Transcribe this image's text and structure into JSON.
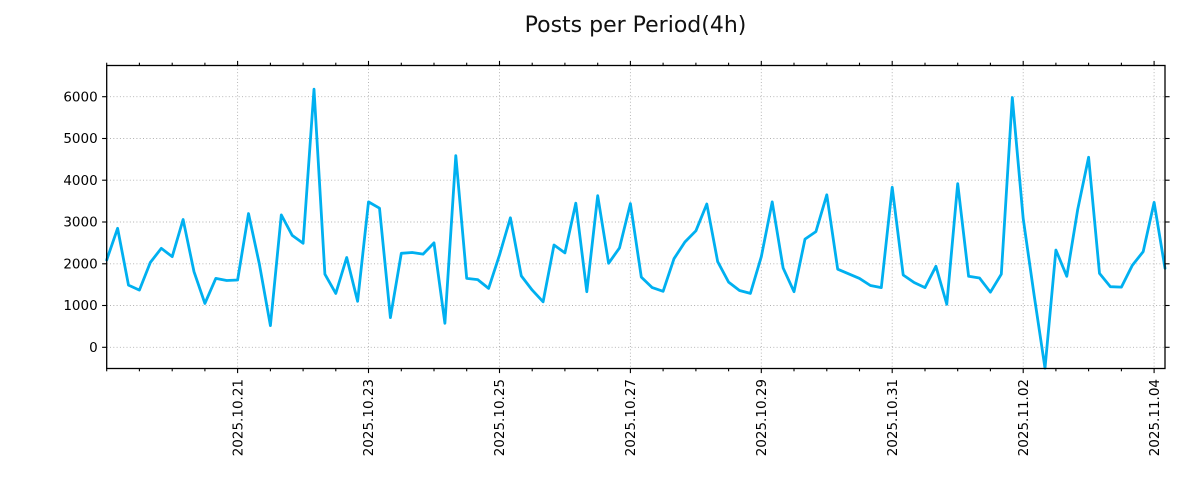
{
  "title": "Posts per Period(4h)",
  "chart_data": {
    "type": "line",
    "title": "Posts per Period(4h)",
    "period_hours": 4,
    "x_tick_labels": [
      "2025.10.21",
      "2025.10.23",
      "2025.10.25",
      "2025.10.27",
      "2025.10.29",
      "2025.10.31",
      "2025.11.02",
      "2025.11.04"
    ],
    "x_tick_indices": [
      12,
      24,
      36,
      48,
      60,
      72,
      84,
      96
    ],
    "x_minor_tick_every": 3,
    "y_tick_labels": [
      "0",
      "1000",
      "2000",
      "3000",
      "4000",
      "5000",
      "6000"
    ],
    "y_ticks": [
      0,
      1000,
      2000,
      3000,
      4000,
      5000,
      6000
    ],
    "ylim": [
      -508,
      6747
    ],
    "grid": "dotted",
    "legend": "none",
    "line_color": "#00b0f0",
    "grid_color": "#b0b0b0",
    "axis_color": "#000000",
    "text_color": "#000000",
    "background": "#ffffff",
    "values": [
      2090,
      2850,
      1490,
      1370,
      2030,
      2370,
      2170,
      3060,
      1810,
      1050,
      1650,
      1600,
      1610,
      3200,
      1990,
      520,
      3170,
      2680,
      2490,
      6180,
      1750,
      1290,
      2150,
      1100,
      3480,
      3330,
      710,
      2250,
      2270,
      2230,
      2500,
      575,
      4590,
      1650,
      1620,
      1410,
      2210,
      3100,
      1710,
      1370,
      1090,
      2450,
      2260,
      3450,
      1330,
      3630,
      2010,
      2380,
      3440,
      1680,
      1430,
      1340,
      2120,
      2520,
      2790,
      3430,
      2050,
      1560,
      1360,
      1290,
      2170,
      3480,
      1900,
      1330,
      2590,
      2770,
      3650,
      1870,
      1760,
      1650,
      1480,
      1430,
      3830,
      1730,
      1550,
      1430,
      1940,
      1030,
      3920,
      1700,
      1660,
      1320,
      1750,
      5980,
      3080,
      1250,
      -500,
      2330,
      1700,
      3300,
      4550,
      1770,
      1450,
      1440,
      1960,
      2290,
      3470,
      1890
    ]
  }
}
